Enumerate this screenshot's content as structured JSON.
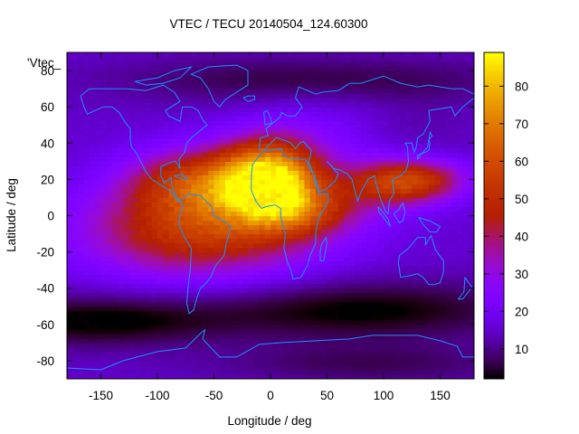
{
  "chart_data": {
    "type": "heatmap",
    "title": "VTEC / TECU 20140504_124.60300",
    "xlabel": "Longitude / deg",
    "ylabel": "Latitude / deg",
    "key_label": "'Vtec_",
    "xlim": [
      -180,
      180
    ],
    "ylim": [
      -90,
      90
    ],
    "x_ticks": [
      -150,
      -100,
      -50,
      0,
      50,
      100,
      150
    ],
    "y_ticks": [
      -80,
      -60,
      -40,
      -20,
      0,
      20,
      40,
      60,
      80
    ],
    "colorbar": {
      "range": [
        2,
        89
      ],
      "ticks": [
        10,
        20,
        30,
        40,
        50,
        60,
        70,
        80
      ],
      "palette": "gnuplot rgbformulae 7,5,15 (black-blue-purple-red-orange-yellow)"
    },
    "coastline_color": "#1e90ff",
    "grid": {
      "lon_step": 5,
      "lat_step": 2.5,
      "model": "estimated from image: peak ~85 TECU near 0 deg lon, 20 deg N; equatorial anomaly crests; troughs near 60-80 deg S"
    }
  }
}
